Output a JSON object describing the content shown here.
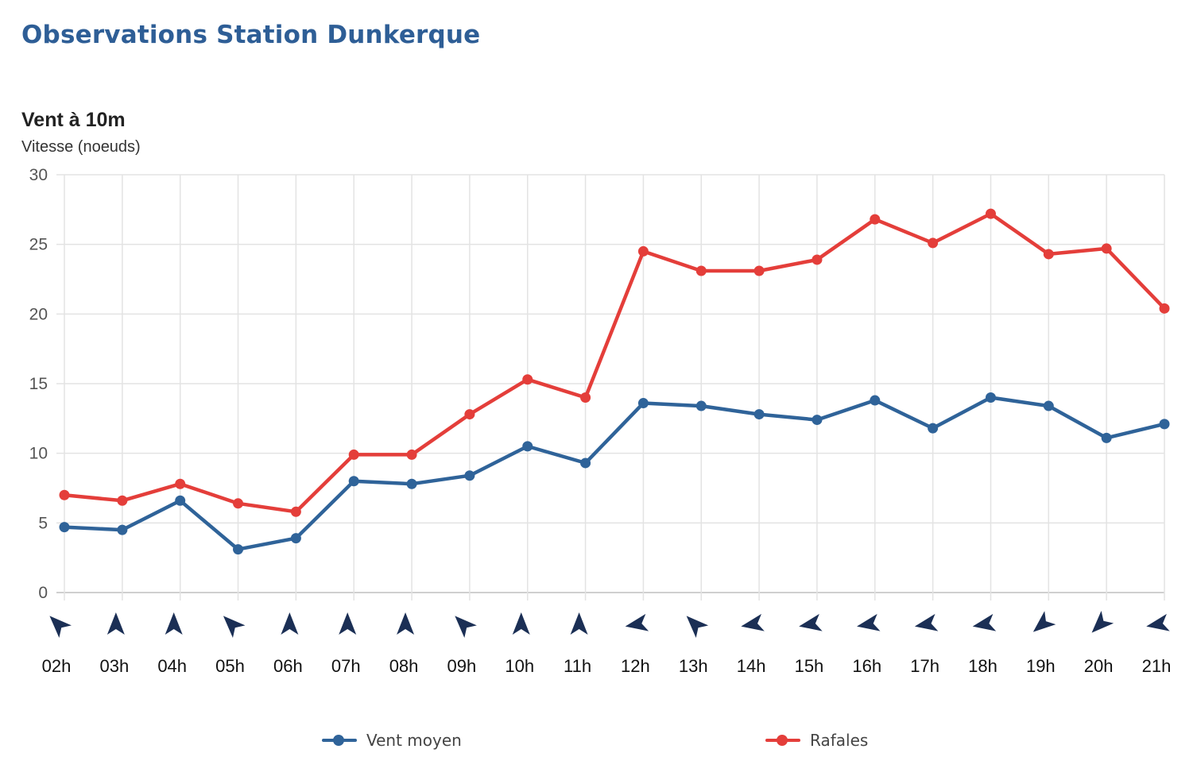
{
  "page": {
    "title": "Observations Station Dunkerque"
  },
  "chart_data": {
    "type": "line",
    "title": "Vent à 10m",
    "ylabel": "Vitesse (noeuds)",
    "xlabel": "",
    "ylim": [
      0,
      30
    ],
    "yticks": [
      "0",
      "5",
      "10",
      "15",
      "20",
      "25",
      "30"
    ],
    "grid": true,
    "legend_position": "bottom",
    "categories": [
      "02h",
      "03h",
      "04h",
      "05h",
      "06h",
      "07h",
      "08h",
      "09h",
      "10h",
      "11h",
      "12h",
      "13h",
      "14h",
      "15h",
      "16h",
      "17h",
      "18h",
      "19h",
      "20h",
      "21h"
    ],
    "series": [
      {
        "name": "Vent moyen",
        "color": "#2f6399",
        "values": [
          4.7,
          4.5,
          6.6,
          3.1,
          3.9,
          8.0,
          7.8,
          8.4,
          10.5,
          9.3,
          13.6,
          13.4,
          12.8,
          12.4,
          13.8,
          11.8,
          14.0,
          13.4,
          11.1,
          12.1
        ]
      },
      {
        "name": "Rafales",
        "color": "#e43e3a",
        "values": [
          7.0,
          6.6,
          7.8,
          6.4,
          5.8,
          9.9,
          9.9,
          12.8,
          15.3,
          14.0,
          24.5,
          23.1,
          23.1,
          23.9,
          26.8,
          25.1,
          27.2,
          24.3,
          24.7,
          20.4
        ]
      }
    ],
    "wind_direction_rotation_deg": [
      -45,
      0,
      0,
      -45,
      0,
      0,
      0,
      -45,
      0,
      0,
      -100,
      -45,
      -100,
      -100,
      -100,
      -100,
      -100,
      -130,
      -135,
      -100
    ],
    "wind_direction_icon": "navigation-arrow-icon",
    "arrow_color": "#1b2f55"
  }
}
